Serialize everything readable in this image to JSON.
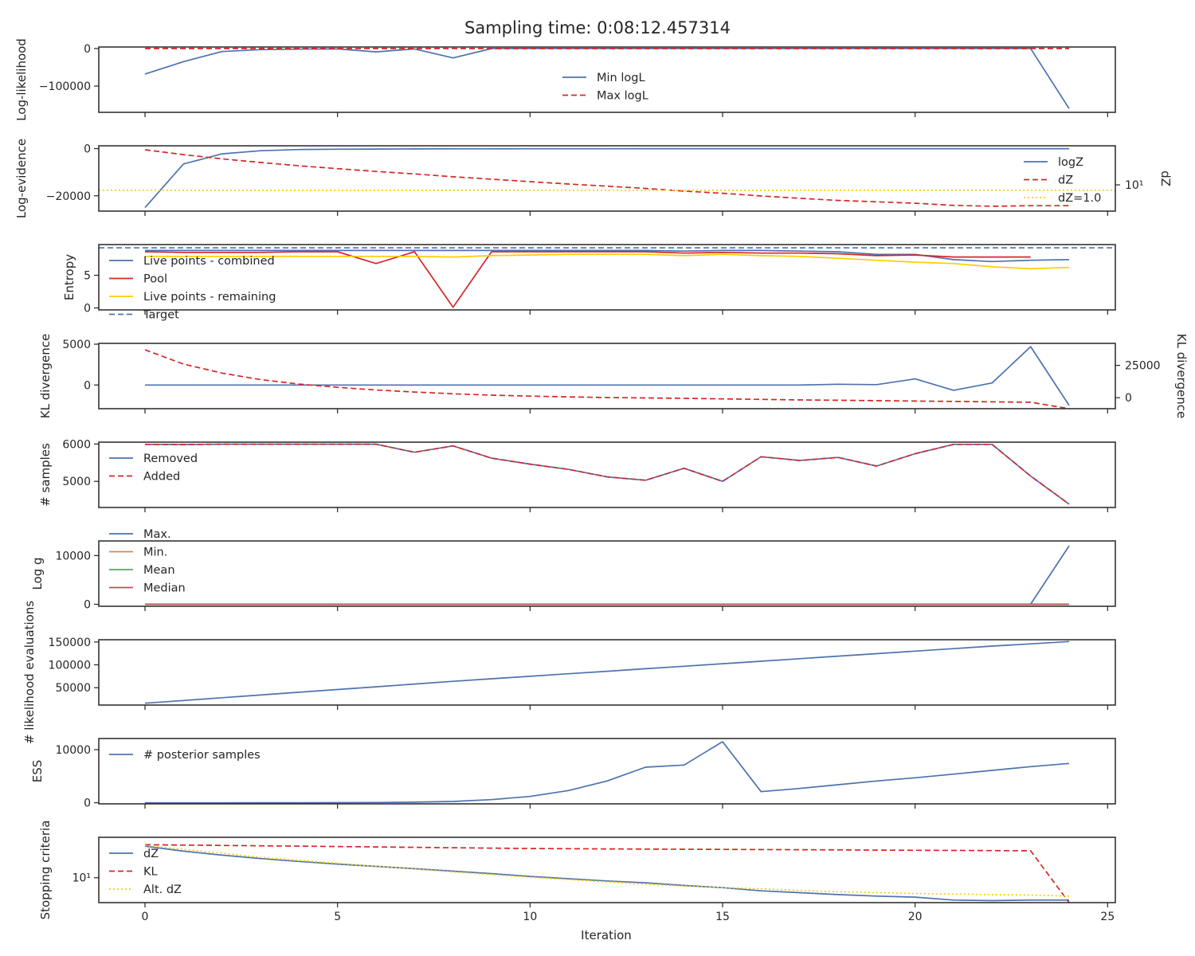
{
  "title": "Sampling time: 0:08:12.457314",
  "xlabel": "Iteration",
  "x_ticks": [
    0,
    5,
    10,
    15,
    20,
    25
  ],
  "colors": {
    "blue": "#4c72b0",
    "red": "#d62728",
    "yellow": "#ffcc00",
    "orange": "#dd8452",
    "green": "#55a868",
    "crimson": "#c44e52",
    "axis": "#262626"
  },
  "chart_data": [
    {
      "type": "line",
      "ylabel": "Log-likelihood",
      "ylim": [
        -170000,
        4000
      ],
      "yticks": [
        {
          "v": 0,
          "label": "0"
        },
        {
          "v": -100000,
          "label": "−100000"
        }
      ],
      "legend": "center",
      "x": [
        0,
        1,
        2,
        3,
        4,
        5,
        6,
        7,
        8,
        9,
        10,
        11,
        12,
        13,
        14,
        15,
        16,
        17,
        18,
        19,
        20,
        21,
        22,
        23,
        24
      ],
      "series": [
        {
          "name": "Min logL",
          "color": "blue",
          "dash": "solid",
          "values": [
            -68000,
            -35000,
            -8000,
            -3000,
            -1500,
            -1000,
            -9000,
            -1000,
            -25000,
            -200,
            -100,
            -100,
            -100,
            -100,
            -100,
            -100,
            -100,
            -100,
            -100,
            -100,
            -100,
            -100,
            -100,
            -100,
            -160000
          ]
        },
        {
          "name": "Max logL",
          "color": "red",
          "dash": "dashed",
          "values": [
            0,
            0,
            0,
            0,
            0,
            0,
            0,
            0,
            0,
            0,
            0,
            0,
            0,
            0,
            0,
            0,
            0,
            0,
            0,
            0,
            0,
            0,
            0,
            0,
            0
          ]
        }
      ]
    },
    {
      "type": "line",
      "ylabel": "Log-evidence",
      "ylabel_right": "dZ",
      "ylim": [
        -26500,
        1200
      ],
      "yticks": [
        {
          "v": 0,
          "label": "0"
        },
        {
          "v": -20000,
          "label": "−20000"
        }
      ],
      "right_yscale": "log",
      "right_ylim": [
        3.0,
        60
      ],
      "right_yticks": [
        {
          "v": 10,
          "label": "10¹"
        }
      ],
      "legend": "right",
      "x": [
        0,
        1,
        2,
        3,
        4,
        5,
        6,
        7,
        8,
        9,
        10,
        11,
        12,
        13,
        14,
        15,
        16,
        17,
        18,
        19,
        20,
        21,
        22,
        23,
        24
      ],
      "series": [
        {
          "name": "logZ",
          "color": "blue",
          "dash": "solid",
          "axis": "left",
          "values": [
            -25000,
            -6500,
            -2200,
            -900,
            -400,
            -250,
            -170,
            -120,
            -90,
            -70,
            -55,
            -45,
            -38,
            -32,
            -28,
            -25,
            -22,
            -20,
            -18,
            -17,
            -16,
            -15,
            -14,
            -13,
            -13
          ]
        },
        {
          "name": "dZ",
          "color": "red",
          "dash": "dashed",
          "axis": "right",
          "values": [
            50,
            40,
            33,
            28,
            24,
            21,
            18.5,
            16.5,
            14.5,
            13,
            11.6,
            10.4,
            9.4,
            8.5,
            7.5,
            6.8,
            6.0,
            5.4,
            4.9,
            4.6,
            4.3,
            3.9,
            3.75,
            3.85,
            3.85
          ]
        },
        {
          "name": "dZ=1.0",
          "color": "yellow",
          "dash": "dotted",
          "axis": "right",
          "hline": 7.8
        }
      ]
    },
    {
      "type": "line",
      "ylabel": "Entropy",
      "ylim": [
        -0.3,
        9.7
      ],
      "yticks": [
        {
          "v": 0,
          "label": "0"
        },
        {
          "v": 5,
          "label": "5"
        }
      ],
      "legend": "left",
      "x": [
        0,
        1,
        2,
        3,
        4,
        5,
        6,
        7,
        8,
        9,
        10,
        11,
        12,
        13,
        14,
        15,
        16,
        17,
        18,
        19,
        20,
        21,
        22,
        23,
        24
      ],
      "series": [
        {
          "name": "Live points - combined",
          "color": "blue",
          "dash": "solid",
          "values": [
            8.8,
            8.8,
            8.8,
            8.8,
            8.8,
            8.8,
            8.8,
            8.8,
            8.8,
            8.8,
            8.8,
            8.8,
            8.8,
            8.8,
            8.7,
            8.8,
            8.8,
            8.7,
            8.6,
            8.2,
            8.2,
            7.4,
            7.1,
            7.3,
            7.4
          ]
        },
        {
          "name": "Pool",
          "color": "red",
          "dash": "solid",
          "values": [
            8.6,
            8.5,
            8.5,
            8.5,
            8.6,
            8.6,
            6.8,
            8.6,
            0.1,
            8.6,
            8.6,
            8.6,
            8.6,
            8.6,
            8.4,
            8.5,
            8.4,
            8.4,
            8.3,
            8.0,
            8.1,
            7.8,
            7.8,
            7.8,
            null
          ]
        },
        {
          "name": "Live points - remaining",
          "color": "yellow",
          "dash": "solid",
          "values": [
            7.9,
            7.9,
            7.9,
            7.9,
            7.9,
            7.9,
            7.9,
            7.9,
            7.8,
            8.0,
            8.1,
            8.2,
            8.2,
            8.2,
            8.0,
            8.2,
            8.0,
            7.9,
            7.6,
            7.3,
            7.0,
            6.8,
            6.3,
            6.0,
            6.2
          ]
        },
        {
          "name": "Target",
          "color": "blue",
          "dash": "dashed",
          "hline": 9.2
        }
      ]
    },
    {
      "type": "line",
      "ylabel": "KL divergence",
      "ylabel_right": "KL divergence",
      "ylim": [
        -2900,
        5100
      ],
      "yticks": [
        {
          "v": 5000,
          "label": "5000"
        },
        {
          "v": 0,
          "label": "0"
        }
      ],
      "right_ylim": [
        -8500,
        42000
      ],
      "right_yticks": [
        {
          "v": 25000,
          "label": "25000"
        },
        {
          "v": 0,
          "label": "0"
        }
      ],
      "x": [
        0,
        1,
        2,
        3,
        4,
        5,
        6,
        7,
        8,
        9,
        10,
        11,
        12,
        13,
        14,
        15,
        16,
        17,
        18,
        19,
        20,
        21,
        22,
        23,
        24
      ],
      "series": [
        {
          "color": "blue",
          "dash": "solid",
          "axis": "left",
          "values": [
            0,
            0,
            0,
            0,
            0,
            0,
            0,
            0,
            0,
            0,
            0,
            0,
            0,
            0,
            0,
            0,
            0,
            0,
            100,
            50,
            750,
            -650,
            250,
            4700,
            -2500
          ]
        },
        {
          "color": "red",
          "dash": "dashed",
          "axis": "right",
          "values": [
            37000,
            26000,
            19000,
            14000,
            10500,
            8000,
            6000,
            4400,
            3000,
            2000,
            1200,
            600,
            150,
            -200,
            -500,
            -900,
            -1300,
            -1700,
            -2000,
            -2300,
            -2600,
            -2900,
            -3200,
            -3500,
            -8500
          ]
        }
      ]
    },
    {
      "type": "line",
      "ylabel": "# samples",
      "ylim": [
        4300,
        6050
      ],
      "yticks": [
        {
          "v": 6000,
          "label": "6000"
        },
        {
          "v": 5000,
          "label": "5000"
        }
      ],
      "legend": "left",
      "x": [
        0,
        1,
        2,
        3,
        4,
        5,
        6,
        7,
        8,
        9,
        10,
        11,
        12,
        13,
        14,
        15,
        16,
        17,
        18,
        19,
        20,
        21,
        22,
        23,
        24
      ],
      "series": [
        {
          "name": "Removed",
          "color": "blue",
          "dash": "solid",
          "values": [
            5990,
            5985,
            5995,
            5995,
            5995,
            5995,
            5995,
            5780,
            5950,
            5620,
            5460,
            5320,
            5120,
            5030,
            5350,
            5000,
            5660,
            5560,
            5640,
            5410,
            5740,
            5990,
            5990,
            5140,
            4390
          ]
        },
        {
          "name": "Added",
          "color": "red",
          "dash": "dashed",
          "values": [
            5990,
            5985,
            5995,
            5995,
            5995,
            5995,
            5995,
            5780,
            5950,
            5620,
            5460,
            5320,
            5120,
            5030,
            5350,
            5000,
            5660,
            5560,
            5640,
            5410,
            5740,
            5990,
            5990,
            5140,
            4390
          ]
        }
      ]
    },
    {
      "type": "line",
      "ylabel": "Log g",
      "ylim": [
        -400,
        13000
      ],
      "yticks": [
        {
          "v": 10000,
          "label": "10000"
        },
        {
          "v": 0,
          "label": "0"
        }
      ],
      "legend": "left-outside",
      "x": [
        0,
        1,
        2,
        3,
        4,
        5,
        6,
        7,
        8,
        9,
        10,
        11,
        12,
        13,
        14,
        15,
        16,
        17,
        18,
        19,
        20,
        21,
        22,
        23,
        24
      ],
      "series": [
        {
          "name": "Max.",
          "color": "blue",
          "dash": "solid",
          "values": [
            20,
            20,
            20,
            20,
            20,
            20,
            20,
            20,
            20,
            20,
            20,
            20,
            20,
            20,
            20,
            20,
            20,
            20,
            20,
            20,
            20,
            20,
            20,
            20,
            12000
          ]
        },
        {
          "name": "Min.",
          "color": "orange",
          "dash": "solid",
          "values": [
            0,
            0,
            0,
            0,
            0,
            0,
            0,
            0,
            0,
            0,
            0,
            0,
            0,
            0,
            0,
            0,
            0,
            0,
            0,
            0,
            0,
            0,
            0,
            0,
            0
          ]
        },
        {
          "name": "Mean",
          "color": "green",
          "dash": "solid",
          "values": [
            5,
            5,
            5,
            5,
            5,
            5,
            5,
            5,
            5,
            5,
            5,
            5,
            5,
            5,
            5,
            5,
            5,
            5,
            5,
            5,
            5,
            5,
            5,
            5,
            5
          ]
        },
        {
          "name": "Median",
          "color": "crimson",
          "dash": "solid",
          "values": [
            5,
            5,
            5,
            5,
            5,
            5,
            5,
            5,
            5,
            5,
            5,
            5,
            5,
            5,
            5,
            5,
            5,
            5,
            5,
            5,
            5,
            5,
            5,
            5,
            5
          ]
        }
      ]
    },
    {
      "type": "line",
      "ylabel": "# likelihood evaluations",
      "ylim": [
        12000,
        155000
      ],
      "yticks": [
        {
          "v": 150000,
          "label": "150000"
        },
        {
          "v": 100000,
          "label": "100000"
        },
        {
          "v": 50000,
          "label": "50000"
        }
      ],
      "x": [
        0,
        1,
        2,
        3,
        4,
        5,
        6,
        7,
        8,
        9,
        10,
        11,
        12,
        13,
        14,
        15,
        16,
        17,
        18,
        19,
        20,
        21,
        22,
        23,
        24
      ],
      "series": [
        {
          "color": "blue",
          "dash": "solid",
          "values": [
            16000,
            22000,
            28000,
            34000,
            40000,
            46000,
            52000,
            58000,
            64000,
            69500,
            75000,
            80500,
            86000,
            91500,
            97000,
            102500,
            108000,
            113500,
            119000,
            124500,
            130000,
            135500,
            141000,
            146000,
            151000
          ]
        }
      ]
    },
    {
      "type": "line",
      "ylabel": "ESS",
      "ylim": [
        -200,
        12100
      ],
      "yticks": [
        {
          "v": 10000,
          "label": "10000"
        },
        {
          "v": 0,
          "label": "0"
        }
      ],
      "legend": "left",
      "x": [
        0,
        1,
        2,
        3,
        4,
        5,
        6,
        7,
        8,
        9,
        10,
        11,
        12,
        13,
        14,
        15,
        16,
        17,
        18,
        19,
        20,
        21,
        22,
        23,
        24
      ],
      "series": [
        {
          "name": "# posterior samples",
          "color": "blue",
          "dash": "solid",
          "values": [
            0,
            0,
            0,
            5,
            10,
            30,
            60,
            120,
            250,
            600,
            1200,
            2300,
            4100,
            6700,
            7100,
            11500,
            2100,
            2700,
            3400,
            4100,
            4700,
            5400,
            6100,
            6800,
            7400
          ]
        }
      ]
    },
    {
      "type": "line",
      "ylabel": "Stopping criteria",
      "yscale": "log",
      "ylim": [
        3.8,
        48
      ],
      "yticks": [
        {
          "v": 10,
          "label": "10¹"
        }
      ],
      "legend": "left",
      "x": [
        0,
        1,
        2,
        3,
        4,
        5,
        6,
        7,
        8,
        9,
        10,
        11,
        12,
        13,
        14,
        15,
        16,
        17,
        18,
        19,
        20,
        21,
        22,
        23,
        24
      ],
      "series": [
        {
          "name": "dZ",
          "color": "blue",
          "dash": "solid",
          "values": [
            34,
            28,
            24,
            21,
            18.8,
            17,
            15.5,
            14.2,
            12.9,
            11.7,
            10.5,
            9.6,
            8.8,
            8.2,
            7.4,
            6.8,
            6.0,
            5.6,
            5.2,
            4.9,
            4.7,
            4.2,
            4.1,
            4.2,
            4.2
          ]
        },
        {
          "name": "KL",
          "color": "red",
          "dash": "dashed",
          "values": [
            36,
            35.5,
            35,
            34.5,
            34,
            33.5,
            33,
            32.5,
            32,
            31.5,
            31,
            30.8,
            30.6,
            30.4,
            30.2,
            30,
            29.8,
            29.6,
            29.4,
            29.2,
            29,
            28.8,
            28.6,
            28.5,
            3.8
          ]
        },
        {
          "name": "Alt. dZ",
          "color": "yellow",
          "dash": "dotted",
          "values": [
            35,
            30,
            26,
            22,
            19.5,
            17.5,
            15.5,
            14,
            12.5,
            11.3,
            10.2,
            9.3,
            8.5,
            7.8,
            7.2,
            6.8,
            6.5,
            6.1,
            5.8,
            5.6,
            5.4,
            5.3,
            5.2,
            5.1,
            4.9
          ]
        }
      ]
    }
  ]
}
